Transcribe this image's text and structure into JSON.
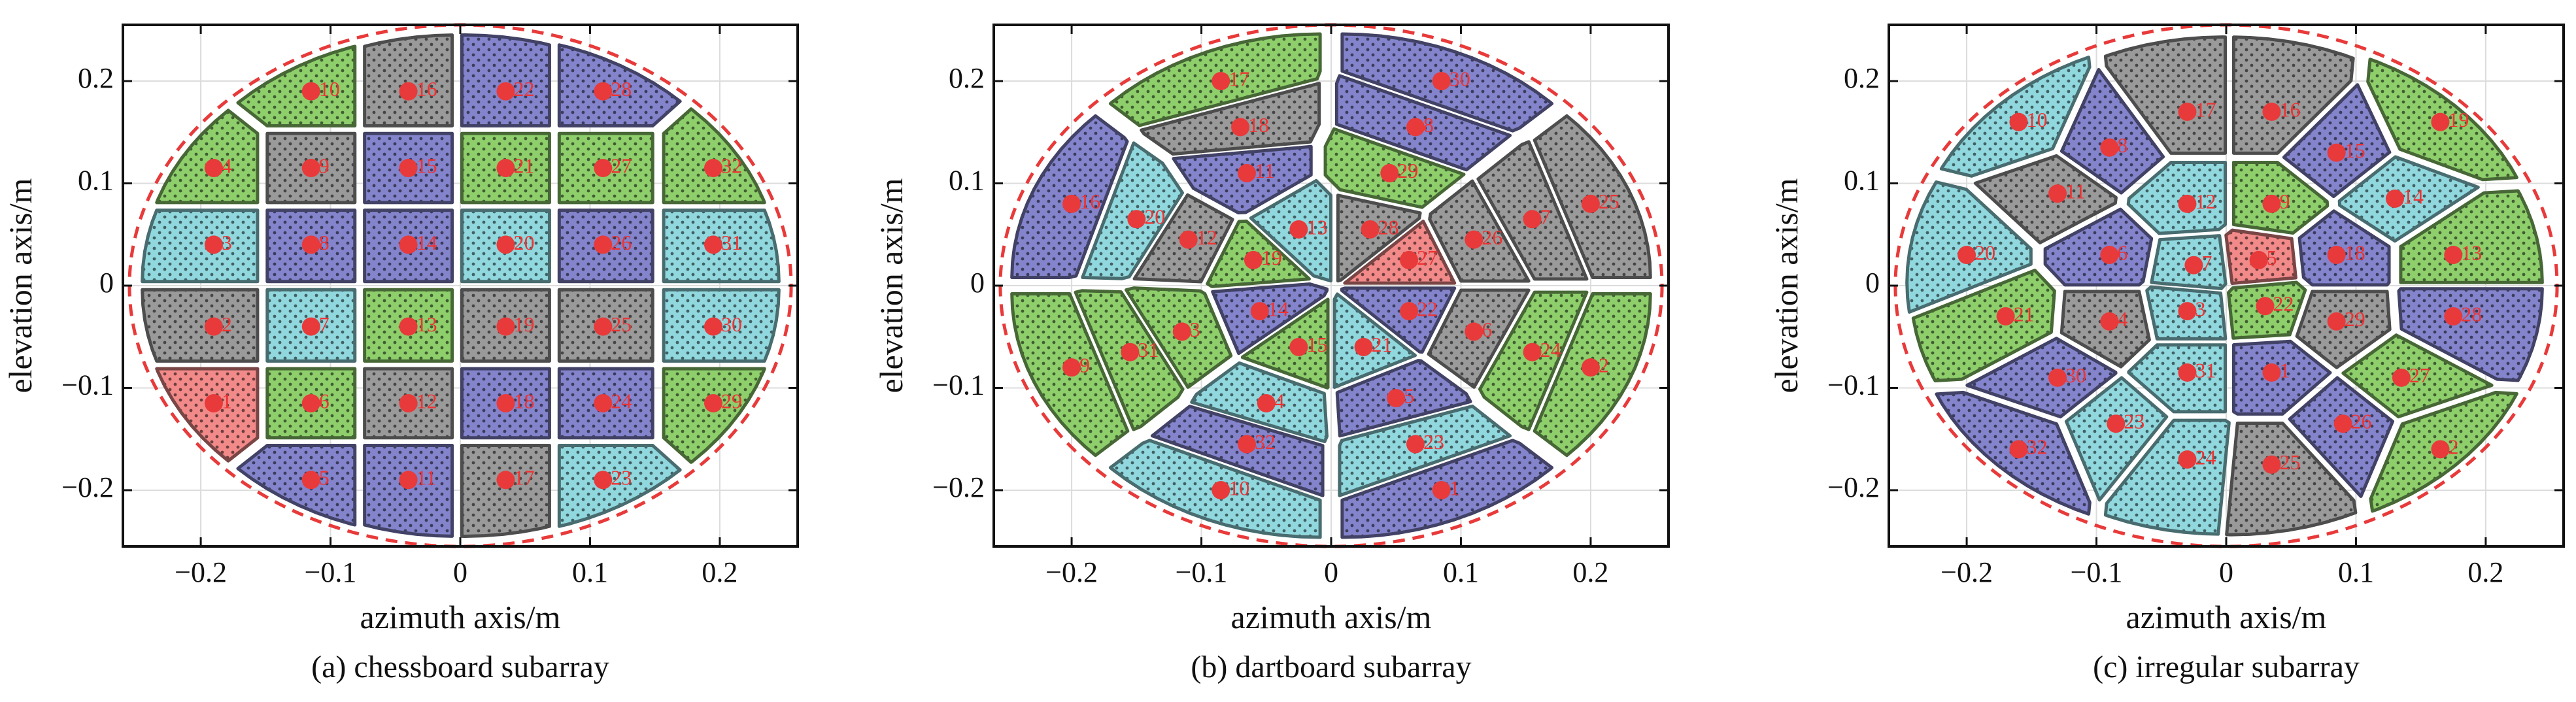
{
  "chart_data": [
    {
      "type": "scatter",
      "caption": "(a) chessboard subarray",
      "xlabel": "azimuth axis/m",
      "ylabel": "elevation axis/m",
      "xlim": [
        -0.26,
        0.26
      ],
      "ylim": [
        -0.255,
        0.255
      ],
      "xticks": [
        {
          "value": -0.2,
          "label": "−0.2"
        },
        {
          "value": -0.1,
          "label": "−0.1"
        },
        0,
        0.1,
        0.2
      ],
      "yticks": [
        {
          "value": -0.2,
          "label": "−0.2"
        },
        {
          "value": -0.1,
          "label": "−0.1"
        },
        0,
        0.1,
        0.2
      ],
      "grid": true,
      "point_color": "#e83a3a",
      "aperture_radius": 0.255,
      "x": [
        -0.19,
        -0.19,
        -0.19,
        -0.19,
        -0.115,
        -0.115,
        -0.115,
        -0.115,
        -0.115,
        -0.115,
        -0.04,
        -0.04,
        -0.04,
        -0.04,
        -0.04,
        -0.04,
        0.035,
        0.035,
        0.035,
        0.035,
        0.035,
        0.035,
        0.11,
        0.11,
        0.11,
        0.11,
        0.11,
        0.11,
        0.195,
        0.195,
        0.195,
        0.195
      ],
      "y": [
        0.115,
        0.04,
        -0.04,
        -0.115,
        0.19,
        0.115,
        0.04,
        -0.04,
        -0.115,
        -0.19,
        0.19,
        0.115,
        0.04,
        -0.04,
        -0.115,
        -0.19,
        0.19,
        0.115,
        0.04,
        -0.04,
        -0.115,
        -0.19,
        0.19,
        0.115,
        0.04,
        -0.04,
        -0.115,
        -0.19,
        0.115,
        0.04,
        -0.04,
        -0.115
      ],
      "labels": [
        "4",
        "3",
        "2",
        "1",
        "10",
        "9",
        "8",
        "7",
        "6",
        "5",
        "16",
        "15",
        "14",
        "13",
        "12",
        "11",
        "22",
        "21",
        "20",
        "19",
        "18",
        "17",
        "28",
        "27",
        "26",
        "25",
        "24",
        "23",
        "32",
        "31",
        "30",
        "29"
      ],
      "colors": [
        "#8ecf6c",
        "#90d8de",
        "#9a9a9a",
        "#f28a8a",
        "#8ecf6c",
        "#9a9a9a",
        "#8484cc",
        "#90d8de",
        "#8ecf6c",
        "#8484cc",
        "#9a9a9a",
        "#8484cc",
        "#8484cc",
        "#8ecf6c",
        "#9a9a9a",
        "#8484cc",
        "#8484cc",
        "#8ecf6c",
        "#90d8de",
        "#9a9a9a",
        "#8484cc",
        "#9a9a9a",
        "#8484cc",
        "#8ecf6c",
        "#8484cc",
        "#9a9a9a",
        "#8484cc",
        "#90d8de",
        "#8ecf6c",
        "#90d8de",
        "#90d8de",
        "#8ecf6c"
      ]
    },
    {
      "type": "scatter",
      "caption": "(b) dartboard subarray",
      "xlabel": "azimuth axis/m",
      "ylabel": "elevation axis/m",
      "xlim": [
        -0.26,
        0.26
      ],
      "ylim": [
        -0.255,
        0.255
      ],
      "xticks": [
        {
          "value": -0.2,
          "label": "−0.2"
        },
        {
          "value": -0.1,
          "label": "−0.1"
        },
        0,
        0.1,
        0.2
      ],
      "yticks": [
        {
          "value": -0.2,
          "label": "−0.2"
        },
        {
          "value": -0.1,
          "label": "−0.1"
        },
        0,
        0.1,
        0.2
      ],
      "grid": true,
      "point_color": "#e83a3a",
      "aperture_radius": 0.255,
      "x": [
        0.085,
        0.2,
        0.065,
        0.05,
        0.155,
        0.11,
        0.025,
        0.06,
        0.2,
        0.155,
        0.11,
        0.06,
        0.03,
        0.045,
        0.065,
        0.085,
        -0.085,
        -0.07,
        -0.065,
        -0.2,
        -0.15,
        -0.11,
        -0.06,
        -0.025,
        -0.2,
        -0.155,
        -0.115,
        -0.055,
        -0.025,
        -0.05,
        -0.065,
        -0.085
      ],
      "y": [
        -0.2,
        -0.08,
        -0.155,
        -0.11,
        -0.065,
        -0.045,
        -0.06,
        -0.025,
        0.08,
        0.065,
        0.045,
        0.025,
        0.055,
        0.11,
        0.155,
        0.2,
        0.2,
        0.155,
        0.11,
        0.08,
        0.065,
        0.045,
        0.025,
        0.055,
        -0.08,
        -0.065,
        -0.045,
        -0.025,
        -0.06,
        -0.115,
        -0.155,
        -0.2
      ],
      "labels": [
        "1",
        "2",
        "23",
        "5",
        "24",
        "6",
        "21",
        "22",
        "25",
        "7",
        "26",
        "27",
        "28",
        "29",
        "8",
        "30",
        "17",
        "18",
        "11",
        "16",
        "20",
        "12",
        "19",
        "13",
        "9",
        "31",
        "3",
        "14",
        "15",
        "4",
        "32",
        "10"
      ],
      "colors": [
        "#8484cc",
        "#8ecf6c",
        "#90d8de",
        "#8484cc",
        "#8ecf6c",
        "#9a9a9a",
        "#90d8de",
        "#8484cc",
        "#9a9a9a",
        "#9a9a9a",
        "#9a9a9a",
        "#f28a8a",
        "#9a9a9a",
        "#8ecf6c",
        "#8484cc",
        "#8484cc",
        "#8ecf6c",
        "#9a9a9a",
        "#8484cc",
        "#8484cc",
        "#90d8de",
        "#9a9a9a",
        "#8ecf6c",
        "#90d8de",
        "#8ecf6c",
        "#8ecf6c",
        "#8ecf6c",
        "#8484cc",
        "#8ecf6c",
        "#90d8de",
        "#8484cc",
        "#90d8de"
      ]
    },
    {
      "type": "scatter",
      "caption": "(c) irregular subarray",
      "xlabel": "azimuth axis/m",
      "ylabel": "elevation axis/m",
      "xlim": [
        -0.26,
        0.26
      ],
      "ylim": [
        -0.255,
        0.255
      ],
      "xticks": [
        {
          "value": -0.2,
          "label": "−0.2"
        },
        {
          "value": -0.1,
          "label": "−0.1"
        },
        0,
        0.1,
        0.2
      ],
      "yticks": [
        {
          "value": -0.2,
          "label": "−0.2"
        },
        {
          "value": -0.1,
          "label": "−0.1"
        },
        0,
        0.1,
        0.2
      ],
      "grid": true,
      "point_color": "#e83a3a",
      "aperture_radius": 0.255,
      "x": [
        -0.16,
        -0.09,
        -0.03,
        0.035,
        0.085,
        0.165,
        -0.13,
        -0.03,
        0.035,
        0.13,
        -0.2,
        -0.09,
        -0.025,
        0.025,
        0.085,
        0.175,
        -0.17,
        -0.09,
        -0.03,
        0.03,
        0.085,
        0.175,
        -0.13,
        -0.03,
        0.035,
        0.135,
        -0.16,
        -0.085,
        -0.03,
        0.035,
        0.09,
        0.165
      ],
      "y": [
        0.16,
        0.135,
        0.17,
        0.17,
        0.13,
        0.16,
        0.09,
        0.08,
        0.08,
        0.085,
        0.03,
        0.03,
        0.02,
        0.025,
        0.03,
        0.03,
        -0.03,
        -0.035,
        -0.025,
        -0.02,
        -0.035,
        -0.03,
        -0.09,
        -0.085,
        -0.085,
        -0.09,
        -0.16,
        -0.135,
        -0.17,
        -0.175,
        -0.135,
        -0.16
      ],
      "labels": [
        "10",
        "8",
        "17",
        "16",
        "15",
        "19",
        "11",
        "12",
        "9",
        "14",
        "20",
        "6",
        "7",
        "5",
        "18",
        "13",
        "21",
        "4",
        "3",
        "22",
        "29",
        "28",
        "30",
        "31",
        "1",
        "27",
        "32",
        "23",
        "24",
        "25",
        "26",
        "2"
      ],
      "colors": [
        "#90d8de",
        "#8484cc",
        "#9a9a9a",
        "#9a9a9a",
        "#8484cc",
        "#8ecf6c",
        "#9a9a9a",
        "#90d8de",
        "#8ecf6c",
        "#90d8de",
        "#90d8de",
        "#8484cc",
        "#90d8de",
        "#f28a8a",
        "#8484cc",
        "#8ecf6c",
        "#8ecf6c",
        "#9a9a9a",
        "#90d8de",
        "#8ecf6c",
        "#9a9a9a",
        "#8484cc",
        "#8484cc",
        "#90d8de",
        "#8484cc",
        "#8ecf6c",
        "#8484cc",
        "#90d8de",
        "#90d8de",
        "#9a9a9a",
        "#8484cc",
        "#8ecf6c"
      ]
    }
  ]
}
